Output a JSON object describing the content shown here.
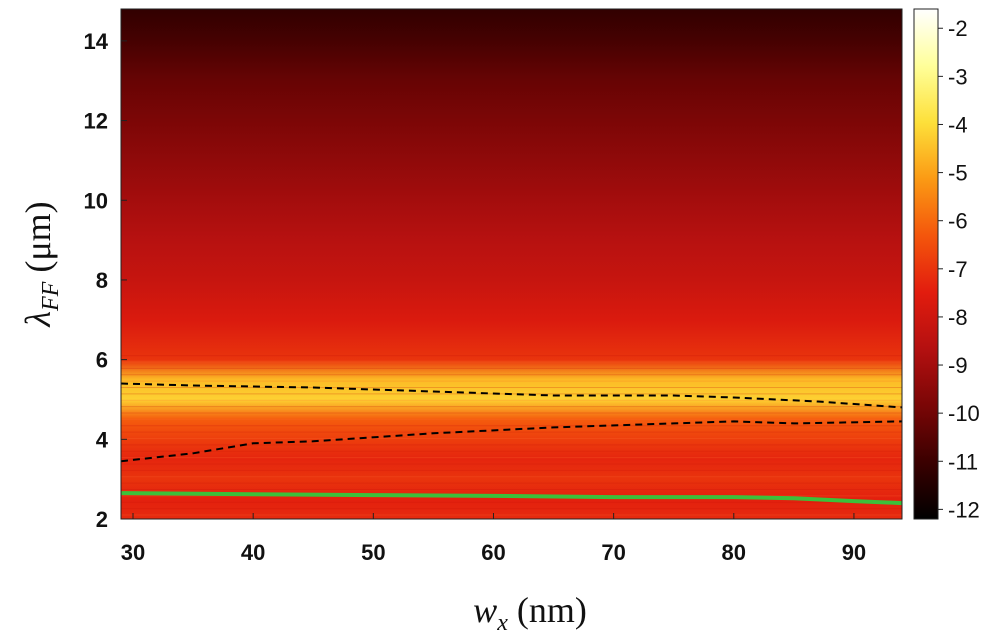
{
  "chart_data": {
    "type": "heatmap",
    "title": "",
    "xlabel": "w_x (nm)",
    "ylabel": "λ_FF (μm)",
    "xlabel_parts": {
      "symbol": "w",
      "sub": "x",
      "unit": " (nm)"
    },
    "ylabel_parts": {
      "symbol": "λ",
      "sub": "FF",
      "unit": " (μm)"
    },
    "xlim": [
      29,
      94
    ],
    "ylim": [
      2,
      14.8
    ],
    "xticks": [
      30,
      40,
      50,
      60,
      70,
      80,
      90
    ],
    "yticks": [
      2,
      4,
      6,
      8,
      10,
      12,
      14
    ],
    "colorbar": {
      "range": [
        -12.2,
        -1.6
      ],
      "ticks": [
        -2,
        -3,
        -4,
        -5,
        -6,
        -7,
        -8,
        -9,
        -10,
        -11,
        -12
      ],
      "colormap": [
        "#000000",
        "#3a0000",
        "#7a0606",
        "#b41010",
        "#e21c0e",
        "#f4560c",
        "#fb9a14",
        "#fde03a",
        "#ffff9a",
        "#ffffff"
      ]
    },
    "field_profile": {
      "lambda": [
        2.0,
        2.5,
        3.0,
        3.5,
        4.0,
        4.5,
        5.0,
        5.5,
        6.0,
        7.0,
        8.0,
        9.0,
        10.0,
        11.0,
        12.0,
        13.0,
        14.0,
        14.8
      ],
      "value": [
        -7.2,
        -7.4,
        -7.0,
        -7.3,
        -6.8,
        -6.2,
        -4.2,
        -4.6,
        -7.0,
        -7.7,
        -8.2,
        -8.6,
        -9.0,
        -9.4,
        -9.8,
        -10.2,
        -10.8,
        -11.2
      ]
    },
    "series": [
      {
        "name": "upper dashed contour",
        "style": "dashed",
        "color": "#000000",
        "x": [
          29,
          35,
          45,
          55,
          65,
          75,
          80,
          87,
          94
        ],
        "y": [
          5.4,
          5.35,
          5.3,
          5.2,
          5.1,
          5.1,
          5.05,
          4.95,
          4.8
        ]
      },
      {
        "name": "lower dashed contour",
        "style": "dashed",
        "color": "#000000",
        "x": [
          29,
          35,
          40,
          45,
          55,
          65,
          75,
          80,
          85,
          94
        ],
        "y": [
          3.45,
          3.65,
          3.9,
          3.95,
          4.15,
          4.3,
          4.4,
          4.45,
          4.4,
          4.45
        ]
      },
      {
        "name": "green line",
        "style": "solid",
        "color": "#3cc03a",
        "x": [
          29,
          40,
          50,
          60,
          70,
          80,
          85,
          90,
          94
        ],
        "y": [
          2.65,
          2.62,
          2.6,
          2.58,
          2.55,
          2.55,
          2.52,
          2.45,
          2.4
        ]
      }
    ]
  }
}
